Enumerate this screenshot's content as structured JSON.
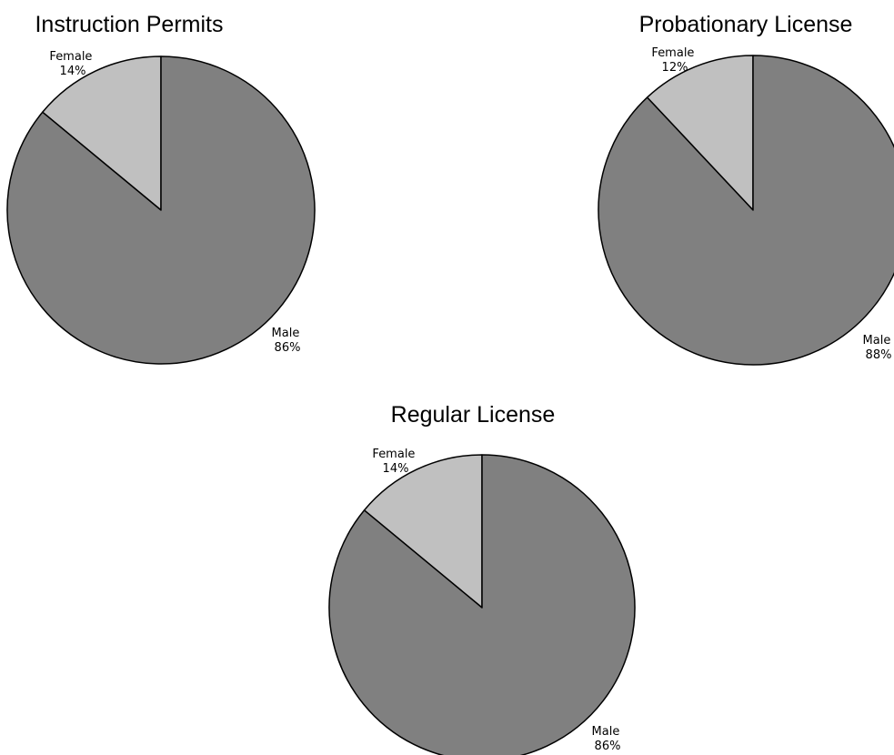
{
  "chart_data": [
    {
      "type": "pie",
      "title": "Instruction Permits",
      "slices": [
        {
          "label": "Female",
          "value": 14,
          "value_label": "14%",
          "color": "#c0c0c0"
        },
        {
          "label": "Male",
          "value": 86,
          "value_label": "86%",
          "color": "#808080"
        }
      ]
    },
    {
      "type": "pie",
      "title": "Probationary License",
      "slices": [
        {
          "label": "Female",
          "value": 12,
          "value_label": "12%",
          "color": "#c0c0c0"
        },
        {
          "label": "Male",
          "value": 88,
          "value_label": "88%",
          "color": "#808080"
        }
      ]
    },
    {
      "type": "pie",
      "title": "Regular License",
      "slices": [
        {
          "label": "Female",
          "value": 14,
          "value_label": "14%",
          "color": "#c0c0c0"
        },
        {
          "label": "Male",
          "value": 86,
          "value_label": "86%",
          "color": "#808080"
        }
      ]
    }
  ]
}
